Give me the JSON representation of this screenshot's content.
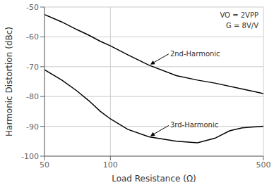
{
  "chart_data": {
    "type": "line",
    "xlabel": "Load Resistance (Ω)",
    "ylabel": "Harmonic Distortion (dBc)",
    "log": "x",
    "grid": true,
    "xlim": [
      50,
      500
    ],
    "ylim": [
      -100,
      -50
    ],
    "xticks": [
      50,
      100,
      500
    ],
    "yticks": [
      -100,
      -90,
      -80,
      -70,
      -60,
      -50
    ],
    "series": [
      {
        "name": "2nd-Harmonic",
        "color": "#000000",
        "x": [
          50,
          60,
          70,
          80,
          90,
          100,
          120,
          150,
          200,
          250,
          300,
          400,
          500
        ],
        "values": [
          -52.5,
          -55,
          -57.5,
          -59.5,
          -61.5,
          -63,
          -66,
          -69.5,
          -73,
          -74.5,
          -75.5,
          -77.5,
          -79
        ]
      },
      {
        "name": "3rd-Harmonic",
        "color": "#000000",
        "x": [
          50,
          60,
          70,
          80,
          90,
          100,
          120,
          150,
          200,
          250,
          300,
          350,
          400,
          450,
          500
        ],
        "values": [
          -71,
          -74.5,
          -78,
          -81.5,
          -85,
          -87.5,
          -91,
          -93.5,
          -95,
          -95.5,
          -94,
          -91.5,
          -90.5,
          -90.2,
          -90
        ]
      }
    ],
    "annotations": [
      "VO = 2VPP",
      "G = 8V/V"
    ]
  }
}
